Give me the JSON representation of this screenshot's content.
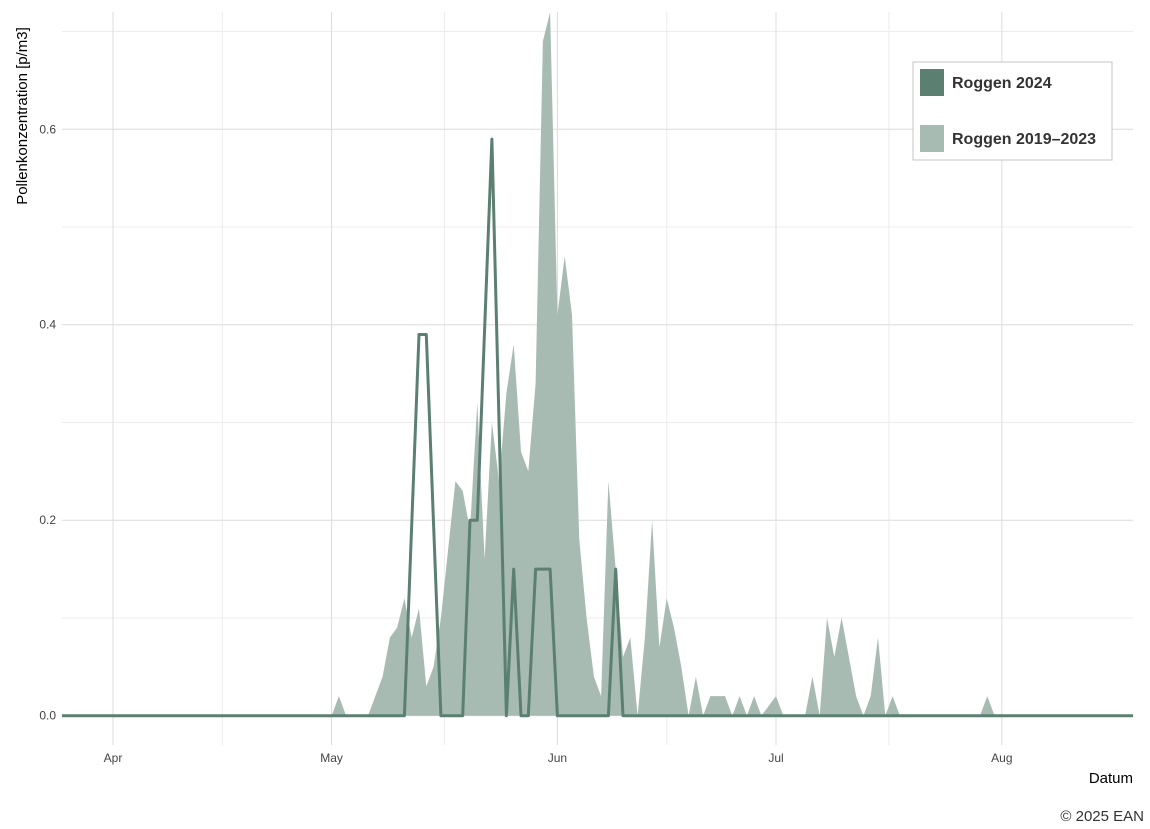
{
  "chart_data": {
    "type": "area",
    "title": "",
    "xlabel": "Datum",
    "ylabel": "Pollenkonzentration [p/m3]",
    "copyright": "© 2025 EAN",
    "xlim": [
      "2024-03-25",
      "2024-08-19"
    ],
    "ylim": [
      -0.03,
      0.72
    ],
    "x_ticks": [
      {
        "date": "2024-04-01",
        "label": "Apr"
      },
      {
        "date": "2024-05-01",
        "label": "May"
      },
      {
        "date": "2024-06-01",
        "label": "Jun"
      },
      {
        "date": "2024-07-01",
        "label": "Jul"
      },
      {
        "date": "2024-08-01",
        "label": "Aug"
      }
    ],
    "y_ticks": [
      {
        "value": 0.0,
        "label": "0.0"
      },
      {
        "value": 0.2,
        "label": "0.2"
      },
      {
        "value": 0.4,
        "label": "0.4"
      },
      {
        "value": 0.6,
        "label": "0.6"
      }
    ],
    "grid": true,
    "legend_position": "top-right",
    "colors": {
      "line": "#5b8071",
      "area": "#a7bbb3"
    },
    "series": [
      {
        "name": "Roggen 2024",
        "kind": "line",
        "points": [
          [
            "2024-03-25",
            0
          ],
          [
            "2024-05-11",
            0
          ],
          [
            "2024-05-13",
            0.39
          ],
          [
            "2024-05-14",
            0.39
          ],
          [
            "2024-05-16",
            0
          ],
          [
            "2024-05-19",
            0
          ],
          [
            "2024-05-20",
            0.2
          ],
          [
            "2024-05-21",
            0.2
          ],
          [
            "2024-05-23",
            0.59
          ],
          [
            "2024-05-25",
            0
          ],
          [
            "2024-05-26",
            0.15
          ],
          [
            "2024-05-27",
            0
          ],
          [
            "2024-05-28",
            0
          ],
          [
            "2024-05-29",
            0.15
          ],
          [
            "2024-05-31",
            0.15
          ],
          [
            "2024-06-01",
            0
          ],
          [
            "2024-06-08",
            0
          ],
          [
            "2024-06-09",
            0.15
          ],
          [
            "2024-06-10",
            0
          ],
          [
            "2024-08-19",
            0
          ]
        ]
      },
      {
        "name": "Roggen 2019–2023",
        "kind": "area",
        "points": [
          [
            "2024-03-25",
            0
          ],
          [
            "2024-05-01",
            0
          ],
          [
            "2024-05-02",
            0.02
          ],
          [
            "2024-05-03",
            0
          ],
          [
            "2024-05-06",
            0
          ],
          [
            "2024-05-08",
            0.04
          ],
          [
            "2024-05-09",
            0.08
          ],
          [
            "2024-05-10",
            0.09
          ],
          [
            "2024-05-11",
            0.12
          ],
          [
            "2024-05-12",
            0.08
          ],
          [
            "2024-05-13",
            0.11
          ],
          [
            "2024-05-14",
            0.03
          ],
          [
            "2024-05-15",
            0.05
          ],
          [
            "2024-05-16",
            0.1
          ],
          [
            "2024-05-17",
            0.17
          ],
          [
            "2024-05-18",
            0.24
          ],
          [
            "2024-05-19",
            0.23
          ],
          [
            "2024-05-20",
            0.19
          ],
          [
            "2024-05-21",
            0.32
          ],
          [
            "2024-05-22",
            0.16
          ],
          [
            "2024-05-23",
            0.3
          ],
          [
            "2024-05-24",
            0.24
          ],
          [
            "2024-05-25",
            0.33
          ],
          [
            "2024-05-26",
            0.38
          ],
          [
            "2024-05-27",
            0.27
          ],
          [
            "2024-05-28",
            0.25
          ],
          [
            "2024-05-29",
            0.34
          ],
          [
            "2024-05-30",
            0.69
          ],
          [
            "2024-05-31",
            0.72
          ],
          [
            "2024-06-01",
            0.41
          ],
          [
            "2024-06-02",
            0.47
          ],
          [
            "2024-06-03",
            0.41
          ],
          [
            "2024-06-04",
            0.18
          ],
          [
            "2024-06-05",
            0.1
          ],
          [
            "2024-06-06",
            0.04
          ],
          [
            "2024-06-07",
            0.02
          ],
          [
            "2024-06-08",
            0.24
          ],
          [
            "2024-06-09",
            0.15
          ],
          [
            "2024-06-10",
            0.06
          ],
          [
            "2024-06-11",
            0.08
          ],
          [
            "2024-06-12",
            0
          ],
          [
            "2024-06-13",
            0.08
          ],
          [
            "2024-06-14",
            0.2
          ],
          [
            "2024-06-15",
            0.07
          ],
          [
            "2024-06-16",
            0.12
          ],
          [
            "2024-06-17",
            0.09
          ],
          [
            "2024-06-18",
            0.05
          ],
          [
            "2024-06-19",
            0
          ],
          [
            "2024-06-20",
            0.04
          ],
          [
            "2024-06-21",
            0
          ],
          [
            "2024-06-22",
            0.02
          ],
          [
            "2024-06-24",
            0.02
          ],
          [
            "2024-06-25",
            0
          ],
          [
            "2024-06-26",
            0.02
          ],
          [
            "2024-06-27",
            0
          ],
          [
            "2024-06-28",
            0.02
          ],
          [
            "2024-06-29",
            0
          ],
          [
            "2024-07-01",
            0.02
          ],
          [
            "2024-07-02",
            0
          ],
          [
            "2024-07-05",
            0
          ],
          [
            "2024-07-06",
            0.04
          ],
          [
            "2024-07-07",
            0
          ],
          [
            "2024-07-08",
            0.1
          ],
          [
            "2024-07-09",
            0.06
          ],
          [
            "2024-07-10",
            0.1
          ],
          [
            "2024-07-11",
            0.06
          ],
          [
            "2024-07-12",
            0.02
          ],
          [
            "2024-07-13",
            0
          ],
          [
            "2024-07-14",
            0.02
          ],
          [
            "2024-07-15",
            0.08
          ],
          [
            "2024-07-16",
            0
          ],
          [
            "2024-07-17",
            0.02
          ],
          [
            "2024-07-18",
            0
          ],
          [
            "2024-07-29",
            0
          ],
          [
            "2024-07-30",
            0.02
          ],
          [
            "2024-07-31",
            0
          ],
          [
            "2024-08-19",
            0
          ]
        ]
      }
    ]
  }
}
